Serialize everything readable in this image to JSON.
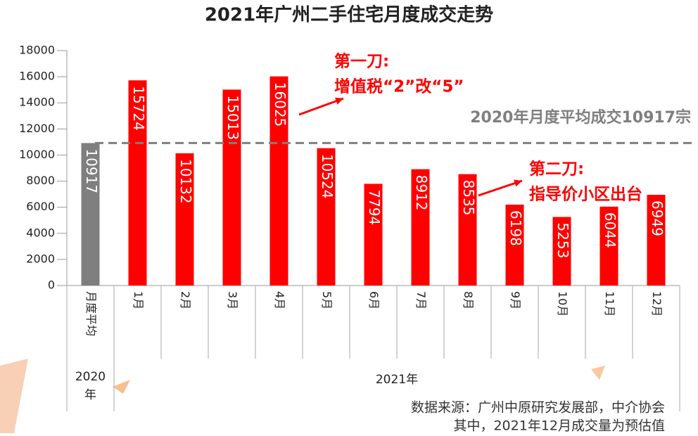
{
  "chart_data": {
    "type": "bar",
    "title": "2021年广州二手住宅月度成交走势",
    "categories": [
      "月度平均",
      "1月",
      "2月",
      "3月",
      "4月",
      "5月",
      "6月",
      "7月",
      "8月",
      "9月",
      "10月",
      "11月",
      "12月"
    ],
    "values": [
      10917,
      15724,
      10132,
      15013,
      16025,
      10524,
      7794,
      8912,
      8535,
      6198,
      5253,
      6044,
      6949
    ],
    "colors": [
      "#7f7f7f",
      "#ff0000",
      "#ff0000",
      "#ff0000",
      "#ff0000",
      "#ff0000",
      "#ff0000",
      "#ff0000",
      "#ff0000",
      "#ff0000",
      "#ff0000",
      "#ff0000",
      "#ff0000"
    ],
    "groups": [
      {
        "label": "2020年",
        "count": 1
      },
      {
        "label": "2021年",
        "count": 12
      }
    ],
    "ylim": [
      0,
      18000
    ],
    "yticks": [
      0,
      2000,
      4000,
      6000,
      8000,
      10000,
      12000,
      14000,
      16000,
      18000
    ],
    "reference_line": {
      "value": 10917,
      "label": "2020年月度平均成交10917宗",
      "color": "#7f7f7f"
    },
    "annotations": [
      {
        "lines": [
          "第一刀:",
          "增值税“2”改“5”"
        ],
        "color": "#ff0000"
      },
      {
        "lines": [
          "第二刀:",
          "指导价小区出台"
        ],
        "color": "#ff0000"
      }
    ],
    "source": [
      "数据来源：广州中原研究发展部，中介协会",
      "其中，2021年12月成交量为预估值"
    ]
  }
}
